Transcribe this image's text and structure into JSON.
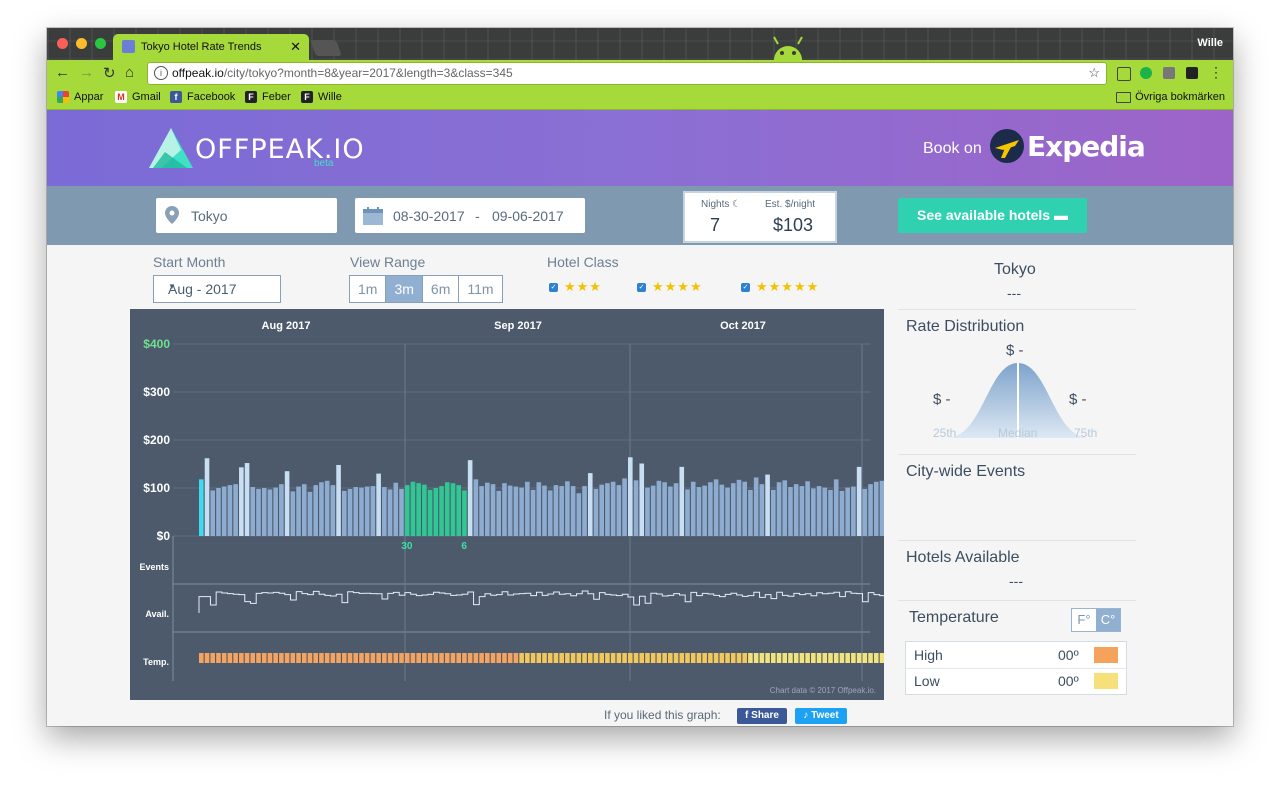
{
  "browser": {
    "tab_title": "Tokyo Hotel Rate Trends",
    "tab_close": "✕",
    "user_name": "Wille",
    "url_host": "offpeak.io",
    "url_path": "/city/tokyo?month=8&year=2017&length=3&class=345",
    "bookmarks": [
      {
        "label": "Appar",
        "icon": "apps-grid-icon"
      },
      {
        "label": "Gmail",
        "icon": "gmail-icon"
      },
      {
        "label": "Facebook",
        "icon": "facebook-icon"
      },
      {
        "label": "Feber",
        "icon": "feber-icon"
      },
      {
        "label": "Wille",
        "icon": "feber-icon"
      }
    ],
    "other_bookmarks": "Övriga bokmärken"
  },
  "site": {
    "logo_text": "OFFPEAK.IO",
    "logo_badge": "beta",
    "book_on": "Book on",
    "partner": "Expedia"
  },
  "search": {
    "city": "Tokyo",
    "date_start": "08-30-2017",
    "date_sep": "-",
    "date_end": "09-06-2017",
    "nights_label": "Nights",
    "nights_value": "7",
    "rate_label": "Est. $/night",
    "rate_value": "$103",
    "cta_label": "See available hotels"
  },
  "controls": {
    "start_month_label": "Start Month",
    "start_month_value": "Aug - 2017",
    "view_range_label": "View Range",
    "view_range_options": [
      "1m",
      "3m",
      "6m",
      "11m"
    ],
    "view_range_selected": "3m",
    "hotel_class_label": "Hotel Class",
    "hotel_classes": [
      {
        "stars": "★★★",
        "checked": true
      },
      {
        "stars": "★★★★",
        "checked": true
      },
      {
        "stars": "★★★★★",
        "checked": true
      }
    ]
  },
  "chart_data": {
    "type": "bar",
    "months": [
      "Aug 2017",
      "Sep 2017",
      "Oct 2017"
    ],
    "y_ticks": [
      "$400",
      "$300",
      "$200",
      "$100",
      "$0"
    ],
    "ylim": [
      0,
      400
    ],
    "row_labels": [
      "Events",
      "Avail.",
      "Temp."
    ],
    "selection_labels": [
      "30",
      "6"
    ],
    "credit": "Chart data © 2017 Offpeak.io.",
    "series": [
      {
        "name": "",
        "values": [
          118,
          162,
          95,
          100,
          103,
          106,
          108,
          143,
          152,
          102,
          98,
          100,
          97,
          101,
          108,
          135,
          93,
          103,
          108,
          92,
          106,
          112,
          115,
          106,
          148,
          94,
          98,
          102,
          101,
          103,
          104,
          130,
          102,
          97,
          111,
          98,
          106,
          113,
          110,
          107,
          96,
          100,
          104,
          112,
          110,
          106,
          95,
          158,
          118,
          104,
          111,
          108,
          94,
          110,
          105,
          103,
          101,
          113,
          96,
          112,
          105,
          95,
          106,
          104,
          114,
          104,
          89,
          104,
          131,
          98,
          107,
          110,
          113,
          106,
          120,
          164,
          116,
          151,
          101,
          105,
          115,
          112,
          103,
          110,
          144,
          97,
          113,
          102,
          105,
          112,
          118,
          107,
          101,
          110,
          117,
          113,
          96,
          122,
          108,
          128,
          96,
          112,
          116,
          102,
          108,
          104,
          114,
          99,
          104,
          101,
          96,
          118,
          94,
          101,
          103,
          144,
          98,
          108,
          113,
          115,
          97,
          102
        ]
      }
    ],
    "highlight_ranges": [
      [
        0,
        0
      ],
      [
        36,
        46
      ]
    ]
  },
  "panel": {
    "city": "Tokyo",
    "city_sub": "---",
    "rate_dist_label": "Rate Distribution",
    "rate_mid": "$ -",
    "rate_low": "$ -",
    "rate_high": "$ -",
    "axis_25": "25th",
    "axis_median": "Median",
    "axis_75": "75th",
    "events_label": "City-wide Events",
    "hotels_label": "Hotels Available",
    "hotels_value": "---",
    "temperature_label": "Temperature",
    "unit_f": "F°",
    "unit_c": "C°",
    "high_label": "High",
    "high_value": "00º",
    "low_label": "Low",
    "low_value": "00º",
    "high_color": "#f5a25d",
    "low_color": "#f5e07a"
  },
  "share": {
    "prompt": "If you liked this graph:",
    "share_label": "Share",
    "tweet_label": "Tweet"
  }
}
